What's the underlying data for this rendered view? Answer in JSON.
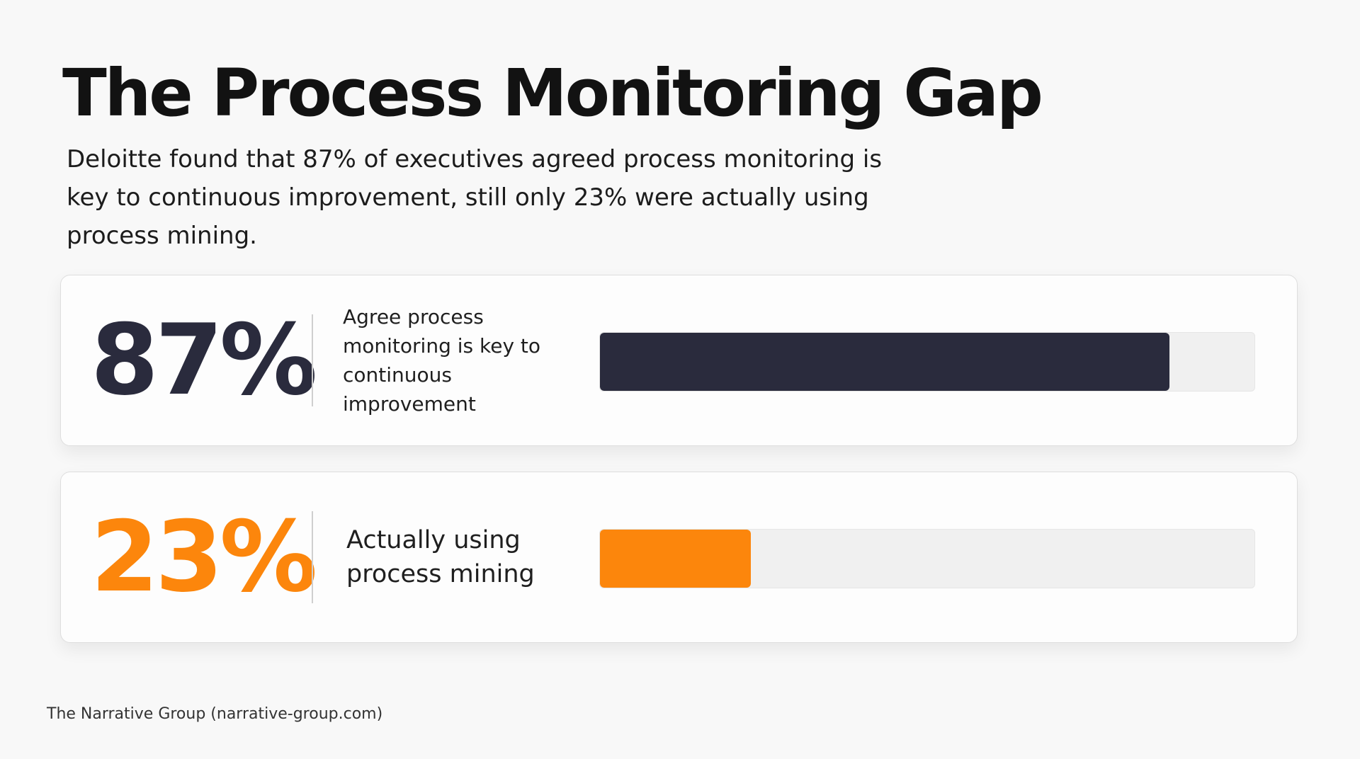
{
  "header": {
    "title": "The Process Monitoring Gap",
    "subtitle": "Deloitte found that 87% of executives agreed process monitoring is key to continuous improvement, still only 23% were actually using process mining."
  },
  "chart_data": {
    "type": "bar",
    "orientation": "horizontal",
    "max": 100,
    "items": [
      {
        "stat": "87%",
        "value": 87,
        "label": "Agree process monitoring is key to continuous improvement",
        "color": "#2a2b3d"
      },
      {
        "stat": "23%",
        "value": 23,
        "label": "Actually using process mining",
        "color": "#fc860c"
      }
    ]
  },
  "footer": {
    "source": "The Narrative Group (narrative-group.com)"
  }
}
